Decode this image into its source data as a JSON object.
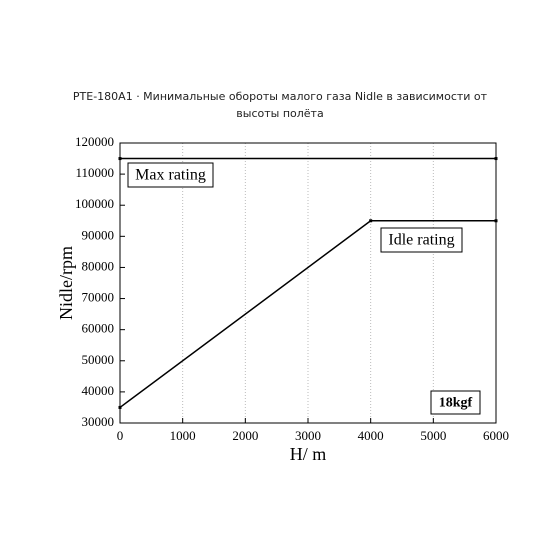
{
  "chart_data": {
    "type": "line",
    "title": "PTE-180A1 · Минимальные обороты малого газа Nidle в зависимости от высоты полёта",
    "x_label": "H/ m",
    "y_label": "Nidle/rpm",
    "series": [
      {
        "color": "#000000",
        "x": [
          0,
          4000,
          6000
        ],
        "values": [
          35000,
          95000,
          95000
        ]
      },
      {
        "color": "#000000",
        "x": [
          0,
          6000
        ],
        "values": [
          115000,
          115000
        ]
      }
    ],
    "annotations": [
      "Max rating",
      "Idle rating",
      "18kgf"
    ],
    "xlim": [
      0,
      6000
    ],
    "xticks": [
      0,
      1000,
      2000,
      3000,
      4000,
      5000,
      6000
    ],
    "ylim": [
      30000,
      120000
    ],
    "yticks": [
      30000,
      40000,
      50000,
      60000,
      70000,
      80000,
      90000,
      100000,
      110000,
      120000
    ],
    "grid": true
  }
}
